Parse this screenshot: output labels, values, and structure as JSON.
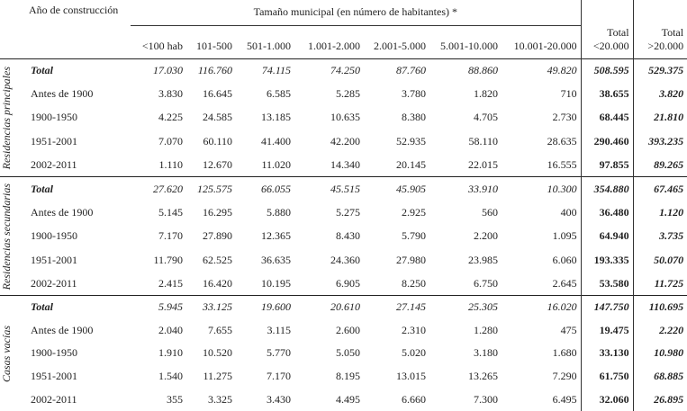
{
  "table": {
    "header": {
      "row_label": "Año de construcción",
      "group_label": "Tamaño municipal (en número de habitantes) *",
      "columns": [
        "<100 hab",
        "101-500",
        "501-1.000",
        "1.001-2.000",
        "2.001-5.000",
        "5.001-10.000",
        "10.001-20.000",
        "Total <20.000",
        "Total >20.000"
      ]
    },
    "groups": [
      {
        "label": "Residencias principales",
        "rows": [
          {
            "label": "Total",
            "values": [
              "17.030",
              "116.760",
              "74.115",
              "74.250",
              "87.760",
              "88.860",
              "49.820",
              "508.595",
              "529.375"
            ]
          },
          {
            "label": "Antes de 1900",
            "values": [
              "3.830",
              "16.645",
              "6.585",
              "5.285",
              "3.780",
              "1.820",
              "710",
              "38.655",
              "3.820"
            ]
          },
          {
            "label": "1900-1950",
            "values": [
              "4.225",
              "24.585",
              "13.185",
              "10.635",
              "8.380",
              "4.705",
              "2.730",
              "68.445",
              "21.810"
            ]
          },
          {
            "label": "1951-2001",
            "values": [
              "7.070",
              "60.110",
              "41.400",
              "42.200",
              "52.935",
              "58.110",
              "28.635",
              "290.460",
              "393.235"
            ]
          },
          {
            "label": "2002-2011",
            "values": [
              "1.110",
              "12.670",
              "11.020",
              "14.340",
              "20.145",
              "22.015",
              "16.555",
              "97.855",
              "89.265"
            ]
          }
        ]
      },
      {
        "label": "Residencias secundarias",
        "rows": [
          {
            "label": "Total",
            "values": [
              "27.620",
              "125.575",
              "66.055",
              "45.515",
              "45.905",
              "33.910",
              "10.300",
              "354.880",
              "67.465"
            ]
          },
          {
            "label": "Antes de 1900",
            "values": [
              "5.145",
              "16.295",
              "5.880",
              "5.275",
              "2.925",
              "560",
              "400",
              "36.480",
              "1.120"
            ]
          },
          {
            "label": "1900-1950",
            "values": [
              "7.170",
              "27.890",
              "12.365",
              "8.430",
              "5.790",
              "2.200",
              "1.095",
              "64.940",
              "3.735"
            ]
          },
          {
            "label": "1951-2001",
            "values": [
              "11.790",
              "62.525",
              "36.635",
              "24.360",
              "27.980",
              "23.985",
              "6.060",
              "193.335",
              "50.070"
            ]
          },
          {
            "label": "2002-2011",
            "values": [
              "2.415",
              "16.420",
              "10.195",
              "6.905",
              "8.250",
              "6.750",
              "2.645",
              "53.580",
              "11.725"
            ]
          }
        ]
      },
      {
        "label": "Casas vacías",
        "rows": [
          {
            "label": "Total",
            "values": [
              "5.945",
              "33.125",
              "19.600",
              "20.610",
              "27.145",
              "25.305",
              "16.020",
              "147.750",
              "110.695"
            ]
          },
          {
            "label": "Antes de 1900",
            "values": [
              "2.040",
              "7.655",
              "3.115",
              "2.600",
              "2.310",
              "1.280",
              "475",
              "19.475",
              "2.220"
            ]
          },
          {
            "label": "1900-1950",
            "values": [
              "1.910",
              "10.520",
              "5.770",
              "5.050",
              "5.020",
              "3.180",
              "1.680",
              "33.130",
              "10.980"
            ]
          },
          {
            "label": "1951-2001",
            "values": [
              "1.540",
              "11.275",
              "7.170",
              "8.195",
              "13.015",
              "13.265",
              "7.290",
              "61.750",
              "68.885"
            ]
          },
          {
            "label": "2002-2011",
            "values": [
              "355",
              "3.325",
              "3.430",
              "4.495",
              "6.660",
              "7.300",
              "6.495",
              "32.060",
              "26.895"
            ]
          }
        ]
      }
    ]
  }
}
